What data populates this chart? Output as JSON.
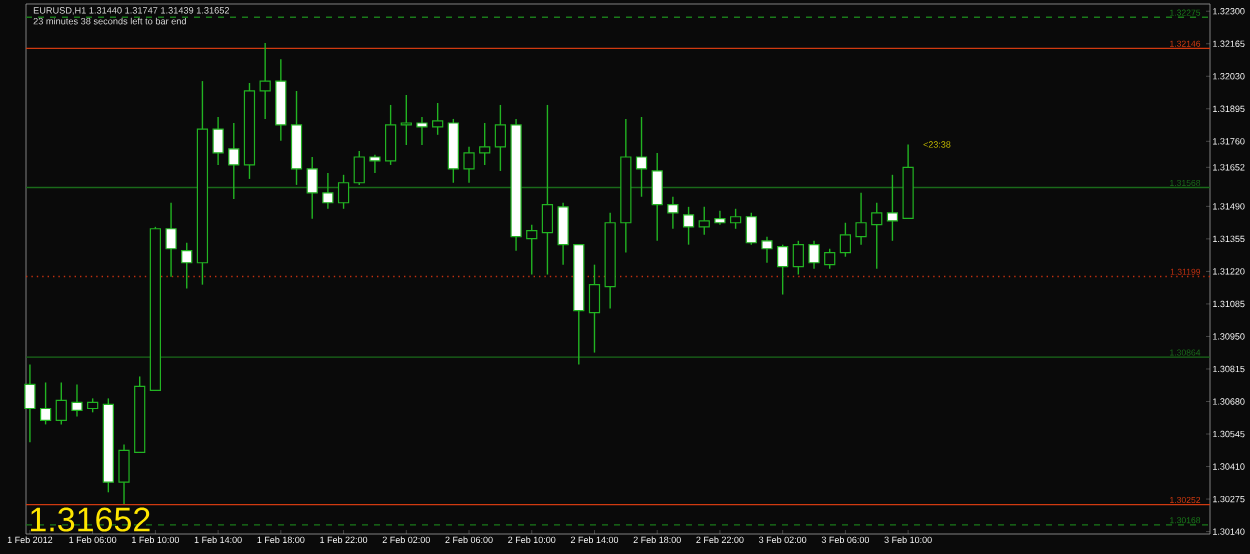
{
  "chart_data": {
    "type": "candlestick",
    "title": "EURUSD,H1  1.31440 1.31747 1.31439 1.31652",
    "subtitle": "23 minutes 38 seconds left to bar end",
    "color": "#22b422",
    "x": [
      "2012-02-01T02:00",
      "2012-02-01T03:00",
      "2012-02-01T04:00",
      "2012-02-01T05:00",
      "2012-02-01T06:00",
      "2012-02-01T07:00",
      "2012-02-01T08:00",
      "2012-02-01T09:00",
      "2012-02-01T10:00",
      "2012-02-01T11:00",
      "2012-02-01T12:00",
      "2012-02-01T13:00",
      "2012-02-01T14:00",
      "2012-02-01T15:00",
      "2012-02-01T16:00",
      "2012-02-01T17:00",
      "2012-02-01T18:00",
      "2012-02-01T19:00",
      "2012-02-01T20:00",
      "2012-02-01T21:00",
      "2012-02-01T22:00",
      "2012-02-01T23:00",
      "2012-02-02T00:00",
      "2012-02-02T01:00",
      "2012-02-02T02:00",
      "2012-02-02T03:00",
      "2012-02-02T04:00",
      "2012-02-02T05:00",
      "2012-02-02T06:00",
      "2012-02-02T07:00",
      "2012-02-02T08:00",
      "2012-02-02T09:00",
      "2012-02-02T10:00",
      "2012-02-02T11:00",
      "2012-02-02T12:00",
      "2012-02-02T13:00",
      "2012-02-02T14:00",
      "2012-02-02T15:00",
      "2012-02-02T16:00",
      "2012-02-02T17:00",
      "2012-02-02T18:00",
      "2012-02-02T19:00",
      "2012-02-02T20:00",
      "2012-02-02T21:00",
      "2012-02-02T22:00",
      "2012-02-02T23:00",
      "2012-02-03T00:00",
      "2012-02-03T01:00",
      "2012-02-03T02:00",
      "2012-02-03T03:00",
      "2012-02-03T04:00",
      "2012-02-03T05:00",
      "2012-02-03T06:00",
      "2012-02-03T07:00",
      "2012-02-03T08:00",
      "2012-02-03T09:00",
      "2012-02-03T10:00"
    ],
    "ohlc": [
      [
        1.30751,
        1.30834,
        1.30511,
        1.30651
      ],
      [
        1.30651,
        1.30759,
        1.30585,
        1.30602
      ],
      [
        1.30602,
        1.30759,
        1.30585,
        1.30685
      ],
      [
        1.30676,
        1.30751,
        1.30618,
        1.30643
      ],
      [
        1.30651,
        1.30693,
        1.30635,
        1.30676
      ],
      [
        1.30668,
        1.30693,
        1.30303,
        1.30345
      ],
      [
        1.30345,
        1.30502,
        1.30254,
        1.30477
      ],
      [
        1.30469,
        1.30784,
        1.30469,
        1.30743
      ],
      [
        1.30726,
        1.31405,
        1.30726,
        1.31397
      ],
      [
        1.31397,
        1.31505,
        1.31198,
        1.31314
      ],
      [
        1.31306,
        1.31339,
        1.31149,
        1.31256
      ],
      [
        1.31256,
        1.3201,
        1.31165,
        1.31811
      ],
      [
        1.31811,
        1.31861,
        1.31662,
        1.31712
      ],
      [
        1.31729,
        1.31836,
        1.31521,
        1.31662
      ],
      [
        1.31662,
        1.32002,
        1.31604,
        1.31969
      ],
      [
        1.31969,
        1.32168,
        1.31853,
        1.3201
      ],
      [
        1.3201,
        1.32101,
        1.31762,
        1.31828
      ],
      [
        1.31828,
        1.31969,
        1.31579,
        1.31646
      ],
      [
        1.31646,
        1.31695,
        1.31439,
        1.31546
      ],
      [
        1.31546,
        1.31629,
        1.3148,
        1.31505
      ],
      [
        1.31505,
        1.31621,
        1.3148,
        1.31588
      ],
      [
        1.31588,
        1.3172,
        1.31579,
        1.31695
      ],
      [
        1.31695,
        1.31704,
        1.31629,
        1.31679
      ],
      [
        1.31679,
        1.31911,
        1.31662,
        1.31828
      ],
      [
        1.31828,
        1.31952,
        1.31745,
        1.31836
      ],
      [
        1.31836,
        1.31861,
        1.31745,
        1.3182
      ],
      [
        1.3182,
        1.31919,
        1.31787,
        1.31845
      ],
      [
        1.31836,
        1.31853,
        1.31588,
        1.31646
      ],
      [
        1.31646,
        1.31737,
        1.31588,
        1.31712
      ],
      [
        1.31712,
        1.31836,
        1.31662,
        1.31737
      ],
      [
        1.31737,
        1.31911,
        1.31637,
        1.31828
      ],
      [
        1.31828,
        1.31853,
        1.31306,
        1.31364
      ],
      [
        1.31356,
        1.31414,
        1.31207,
        1.31389
      ],
      [
        1.31381,
        1.31911,
        1.31207,
        1.31497
      ],
      [
        1.31488,
        1.31505,
        1.31248,
        1.31331
      ],
      [
        1.31331,
        1.31331,
        1.30834,
        1.31057
      ],
      [
        1.31049,
        1.31248,
        1.30883,
        1.31165
      ],
      [
        1.31157,
        1.31463,
        1.31066,
        1.31422
      ],
      [
        1.31422,
        1.31853,
        1.31298,
        1.31695
      ],
      [
        1.31695,
        1.31861,
        1.3153,
        1.31646
      ],
      [
        1.31637,
        1.31712,
        1.31347,
        1.31497
      ],
      [
        1.31497,
        1.3153,
        1.31397,
        1.31463
      ],
      [
        1.31455,
        1.31488,
        1.31331,
        1.31405
      ],
      [
        1.31405,
        1.31488,
        1.31372,
        1.3143
      ],
      [
        1.31439,
        1.31472,
        1.31414,
        1.31422
      ],
      [
        1.31422,
        1.3148,
        1.31397,
        1.31447
      ],
      [
        1.31447,
        1.31463,
        1.31331,
        1.31339
      ],
      [
        1.31347,
        1.31364,
        1.31256,
        1.31314
      ],
      [
        1.31323,
        1.31331,
        1.31124,
        1.3124
      ],
      [
        1.3124,
        1.31347,
        1.31207,
        1.31331
      ],
      [
        1.31331,
        1.31347,
        1.31231,
        1.31256
      ],
      [
        1.31248,
        1.31314,
        1.31231,
        1.31298
      ],
      [
        1.31298,
        1.31422,
        1.31281,
        1.31372
      ],
      [
        1.31364,
        1.31546,
        1.31331,
        1.31422
      ],
      [
        1.31414,
        1.31505,
        1.31231,
        1.31463
      ],
      [
        1.31463,
        1.31621,
        1.31347,
        1.3143
      ],
      [
        1.3144,
        1.31747,
        1.31439,
        1.31652
      ]
    ],
    "xlim": [
      "2012-02-01T01:45",
      "2012-02-04T05:15"
    ],
    "ylim": [
      1.3013,
      1.3233
    ],
    "xticks": [
      {
        "value": "2012-02-01T02:00",
        "label": "1 Feb 2012"
      },
      {
        "value": "2012-02-01T06:00",
        "label": "1 Feb 06:00"
      },
      {
        "value": "2012-02-01T10:00",
        "label": "1 Feb 10:00"
      },
      {
        "value": "2012-02-01T14:00",
        "label": "1 Feb 14:00"
      },
      {
        "value": "2012-02-01T18:00",
        "label": "1 Feb 18:00"
      },
      {
        "value": "2012-02-01T22:00",
        "label": "1 Feb 22:00"
      },
      {
        "value": "2012-02-02T02:00",
        "label": "2 Feb 02:00"
      },
      {
        "value": "2012-02-02T06:00",
        "label": "2 Feb 06:00"
      },
      {
        "value": "2012-02-02T10:00",
        "label": "2 Feb 10:00"
      },
      {
        "value": "2012-02-02T14:00",
        "label": "2 Feb 14:00"
      },
      {
        "value": "2012-02-02T18:00",
        "label": "2 Feb 18:00"
      },
      {
        "value": "2012-02-02T22:00",
        "label": "2 Feb 22:00"
      },
      {
        "value": "2012-02-03T02:00",
        "label": "3 Feb 02:00"
      },
      {
        "value": "2012-02-03T06:00",
        "label": "3 Feb 06:00"
      },
      {
        "value": "2012-02-03T10:00",
        "label": "3 Feb 10:00"
      }
    ],
    "yticks": [
      {
        "value": 1.3014,
        "label": "1.30140"
      },
      {
        "value": 1.30275,
        "label": "1.30275"
      },
      {
        "value": 1.3041,
        "label": "1.30410"
      },
      {
        "value": 1.30545,
        "label": "1.30545"
      },
      {
        "value": 1.3068,
        "label": "1.30680"
      },
      {
        "value": 1.30815,
        "label": "1.30815"
      },
      {
        "value": 1.3095,
        "label": "1.30950"
      },
      {
        "value": 1.31085,
        "label": "1.31085"
      },
      {
        "value": 1.3122,
        "label": "1.31220"
      },
      {
        "value": 1.31355,
        "label": "1.31355"
      },
      {
        "value": 1.3149,
        "label": "1.31490"
      },
      {
        "value": 1.31652,
        "label": "1.31652"
      },
      {
        "value": 1.3176,
        "label": "1.31760"
      },
      {
        "value": 1.31895,
        "label": "1.31895"
      },
      {
        "value": 1.3203,
        "label": "1.32030"
      },
      {
        "value": 1.32165,
        "label": "1.32165"
      },
      {
        "value": 1.323,
        "label": "1.32300"
      }
    ],
    "ref_lines": [
      {
        "axis": "y",
        "value": 1.32275,
        "label": "1.32275",
        "color": "#1a7a1a",
        "line_style": "dashed"
      },
      {
        "axis": "y",
        "value": 1.32146,
        "label": "1.32146",
        "color": "#d03a10",
        "line_style": "solid"
      },
      {
        "axis": "y",
        "value": 1.31568,
        "label": "1.31568",
        "color": "#1a6a1a",
        "line_style": "solid"
      },
      {
        "axis": "y",
        "value": 1.31199,
        "label": "1.31199",
        "color": "#c03010",
        "line_style": "dotted"
      },
      {
        "axis": "y",
        "value": 1.30864,
        "label": "1.30864",
        "color": "#1a6a1a",
        "line_style": "solid"
      },
      {
        "axis": "y",
        "value": 1.30252,
        "label": "1.30252",
        "color": "#d03a10",
        "line_style": "solid"
      },
      {
        "axis": "y",
        "value": 1.30168,
        "label": "1.30168",
        "color": "#1a7a1a",
        "line_style": "dashed"
      }
    ],
    "annotations": [
      "1.31652",
      "<23:38"
    ]
  }
}
